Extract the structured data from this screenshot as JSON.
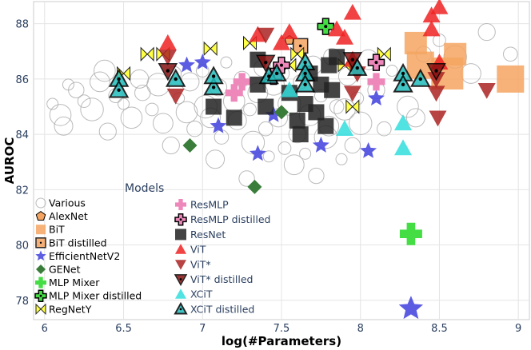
{
  "chart_data": {
    "type": "scatter",
    "xlabel": "log(#Parameters)",
    "ylabel": "AUROC",
    "xlim": [
      5.93,
      9.07
    ],
    "ylim": [
      77.3,
      88.8
    ],
    "xticks": [
      6,
      6.5,
      7,
      7.5,
      8,
      8.5,
      9
    ],
    "yticks": [
      78,
      80,
      82,
      84,
      86,
      88
    ],
    "grid": true,
    "legend_title": "Models",
    "legend_placement": "bottom-left",
    "series": [
      {
        "name": "Various",
        "marker": "circle-open",
        "color": "#aaaaaa",
        "points": [
          [
            6.05,
            85.1
          ],
          [
            6.1,
            84.7
          ],
          [
            6.12,
            84.3
          ],
          [
            6.2,
            85.6
          ],
          [
            6.25,
            85.2
          ],
          [
            6.3,
            84.9
          ],
          [
            6.35,
            85.9
          ],
          [
            6.4,
            84.1
          ],
          [
            6.45,
            85.4
          ],
          [
            6.5,
            85.1
          ],
          [
            6.55,
            84.6
          ],
          [
            6.6,
            86.0
          ],
          [
            6.62,
            85.5
          ],
          [
            6.68,
            84.9
          ],
          [
            6.72,
            85.8
          ],
          [
            6.75,
            84.4
          ],
          [
            6.8,
            83.6
          ],
          [
            6.82,
            86.2
          ],
          [
            6.85,
            85.3
          ],
          [
            6.9,
            84.8
          ],
          [
            6.92,
            85.9
          ],
          [
            6.95,
            84.2
          ],
          [
            7.0,
            86.3
          ],
          [
            7.02,
            85.0
          ],
          [
            7.05,
            84.6
          ],
          [
            7.1,
            85.7
          ],
          [
            7.12,
            83.9
          ],
          [
            7.15,
            86.6
          ],
          [
            7.2,
            85.2
          ],
          [
            7.22,
            84.5
          ],
          [
            7.25,
            86.0
          ],
          [
            7.3,
            84.9
          ],
          [
            7.32,
            83.7
          ],
          [
            7.35,
            85.5
          ],
          [
            7.38,
            86.4
          ],
          [
            7.4,
            84.2
          ],
          [
            7.42,
            83.2
          ],
          [
            7.45,
            85.8
          ],
          [
            7.48,
            84.6
          ],
          [
            7.5,
            86.2
          ],
          [
            7.52,
            83.5
          ],
          [
            7.55,
            85.1
          ],
          [
            7.58,
            82.9
          ],
          [
            7.6,
            84.0
          ],
          [
            7.62,
            85.9
          ],
          [
            7.65,
            83.3
          ],
          [
            7.68,
            84.7
          ],
          [
            7.7,
            86.5
          ],
          [
            7.72,
            82.5
          ],
          [
            7.75,
            85.4
          ],
          [
            7.78,
            83.9
          ],
          [
            7.8,
            84.3
          ],
          [
            7.82,
            86.8
          ],
          [
            7.85,
            85.0
          ],
          [
            7.88,
            83.1
          ],
          [
            7.9,
            84.9
          ],
          [
            7.92,
            86.1
          ],
          [
            7.95,
            83.6
          ],
          [
            7.98,
            85.3
          ],
          [
            8.0,
            84.4
          ],
          [
            8.05,
            86.7
          ],
          [
            8.1,
            85.6
          ],
          [
            8.15,
            84.2
          ],
          [
            8.2,
            86.3
          ],
          [
            8.3,
            85.0
          ],
          [
            8.35,
            84.6
          ],
          [
            8.4,
            86.9
          ],
          [
            8.5,
            87.4
          ],
          [
            8.6,
            86.8
          ],
          [
            8.7,
            86.2
          ],
          [
            8.8,
            87.7
          ],
          [
            8.95,
            86.9
          ],
          [
            6.15,
            85.8
          ],
          [
            6.38,
            86.3
          ],
          [
            7.08,
            83.1
          ],
          [
            7.28,
            82.4
          ]
        ]
      },
      {
        "name": "AlexNet",
        "marker": "pentagon",
        "color": "#f4a460",
        "points": [
          [
            7.55,
            87.4
          ]
        ]
      },
      {
        "name": "BiT",
        "marker": "square",
        "color": "#f4a460",
        "points": [
          [
            8.35,
            87.3
          ],
          [
            8.38,
            86.5
          ],
          [
            8.55,
            86.2
          ],
          [
            8.6,
            86.9
          ],
          [
            8.95,
            86.0
          ]
        ]
      },
      {
        "name": "BiT distilled",
        "marker": "square-dot",
        "color": "#f4a460",
        "points": [
          [
            7.62,
            87.2
          ]
        ]
      },
      {
        "name": "EfficientNetV2",
        "marker": "star",
        "color": "#4a4ae0",
        "points": [
          [
            6.9,
            86.5
          ],
          [
            7.0,
            86.6
          ],
          [
            7.1,
            84.3
          ],
          [
            7.35,
            83.3
          ],
          [
            7.45,
            84.7
          ],
          [
            7.75,
            83.6
          ],
          [
            8.05,
            83.4
          ],
          [
            8.1,
            85.3
          ],
          [
            8.32,
            77.7
          ]
        ]
      },
      {
        "name": "GENet",
        "marker": "diamond",
        "color": "#3a7d3a",
        "points": [
          [
            6.92,
            83.6
          ],
          [
            7.33,
            82.1
          ],
          [
            7.5,
            84.8
          ]
        ]
      },
      {
        "name": "MLP Mixer",
        "marker": "cross",
        "color": "#44dd44",
        "points": [
          [
            8.32,
            80.4
          ]
        ]
      },
      {
        "name": "MLP Mixer distilled",
        "marker": "cross-dot",
        "color": "#44dd44",
        "points": [
          [
            7.78,
            87.9
          ]
        ]
      },
      {
        "name": "RegNetY",
        "marker": "bowtie",
        "color": "#ffff44",
        "points": [
          [
            6.5,
            86.2
          ],
          [
            6.65,
            86.9
          ],
          [
            6.75,
            86.9
          ],
          [
            7.05,
            87.1
          ],
          [
            7.3,
            87.3
          ],
          [
            7.55,
            86.5
          ],
          [
            7.6,
            86.9
          ],
          [
            7.9,
            86.5
          ],
          [
            7.95,
            85.0
          ],
          [
            8.15,
            86.9
          ]
        ]
      },
      {
        "name": "ResMLP",
        "marker": "cross",
        "color": "#ee88bb",
        "points": [
          [
            7.2,
            85.5
          ],
          [
            7.25,
            85.9
          ],
          [
            8.1,
            85.9
          ]
        ]
      },
      {
        "name": "ResMLP distilled",
        "marker": "cross-dot",
        "color": "#ee88bb",
        "points": [
          [
            7.45,
            86.1
          ],
          [
            7.5,
            86.5
          ],
          [
            8.1,
            86.6
          ]
        ]
      },
      {
        "name": "ResNet",
        "marker": "square",
        "color": "#222222",
        "points": [
          [
            7.07,
            85.0
          ],
          [
            7.2,
            84.6
          ],
          [
            7.35,
            85.8
          ],
          [
            7.4,
            85.0
          ],
          [
            7.35,
            86.7
          ],
          [
            7.55,
            85.5
          ],
          [
            7.6,
            84.5
          ],
          [
            7.65,
            85.1
          ],
          [
            7.68,
            86.2
          ],
          [
            7.72,
            84.8
          ],
          [
            7.75,
            85.8
          ],
          [
            7.8,
            86.5
          ],
          [
            7.62,
            84.0
          ],
          [
            7.78,
            84.3
          ],
          [
            7.82,
            85.6
          ],
          [
            7.85,
            86.8
          ]
        ]
      },
      {
        "name": "ViT",
        "marker": "triangle-up",
        "color": "#ee2222",
        "points": [
          [
            6.78,
            87.3
          ],
          [
            7.35,
            87.6
          ],
          [
            7.5,
            87.3
          ],
          [
            7.55,
            87.7
          ],
          [
            7.85,
            87.8
          ],
          [
            7.95,
            88.4
          ],
          [
            7.9,
            87.5
          ],
          [
            7.95,
            86.7
          ],
          [
            8.45,
            88.3
          ],
          [
            8.5,
            88.6
          ],
          [
            8.45,
            87.8
          ],
          [
            8.5,
            86.6
          ]
        ]
      },
      {
        "name": "ViT*",
        "marker": "triangle-down",
        "color": "#aa2222",
        "points": [
          [
            6.78,
            86.8
          ],
          [
            6.83,
            85.4
          ],
          [
            7.4,
            87.6
          ],
          [
            7.95,
            85.5
          ],
          [
            7.98,
            86.2
          ],
          [
            8.48,
            86.0
          ],
          [
            8.48,
            85.5
          ],
          [
            8.49,
            84.6
          ],
          [
            8.8,
            85.6
          ]
        ]
      },
      {
        "name": "ViT* distilled",
        "marker": "triangle-down-dot",
        "color": "#881111",
        "points": [
          [
            6.78,
            86.3
          ],
          [
            7.4,
            86.6
          ],
          [
            7.95,
            86.7
          ],
          [
            8.48,
            86.3
          ]
        ]
      },
      {
        "name": "XCiT",
        "marker": "triangle-up",
        "color": "#33dddd",
        "points": [
          [
            7.55,
            85.6
          ],
          [
            7.9,
            84.2
          ],
          [
            8.27,
            84.4
          ],
          [
            8.27,
            83.5
          ]
        ]
      },
      {
        "name": "XCiT distilled",
        "marker": "triangle-up-dot",
        "color": "#22bbbb",
        "points": [
          [
            6.47,
            86.0
          ],
          [
            6.47,
            85.6
          ],
          [
            6.83,
            86.0
          ],
          [
            7.07,
            85.7
          ],
          [
            7.07,
            86.1
          ],
          [
            7.42,
            86.1
          ],
          [
            7.47,
            86.2
          ],
          [
            7.65,
            86.6
          ],
          [
            7.65,
            86.2
          ],
          [
            7.65,
            85.8
          ],
          [
            7.98,
            86.4
          ],
          [
            8.27,
            86.2
          ],
          [
            8.27,
            85.8
          ],
          [
            8.38,
            86.0
          ]
        ]
      }
    ]
  }
}
